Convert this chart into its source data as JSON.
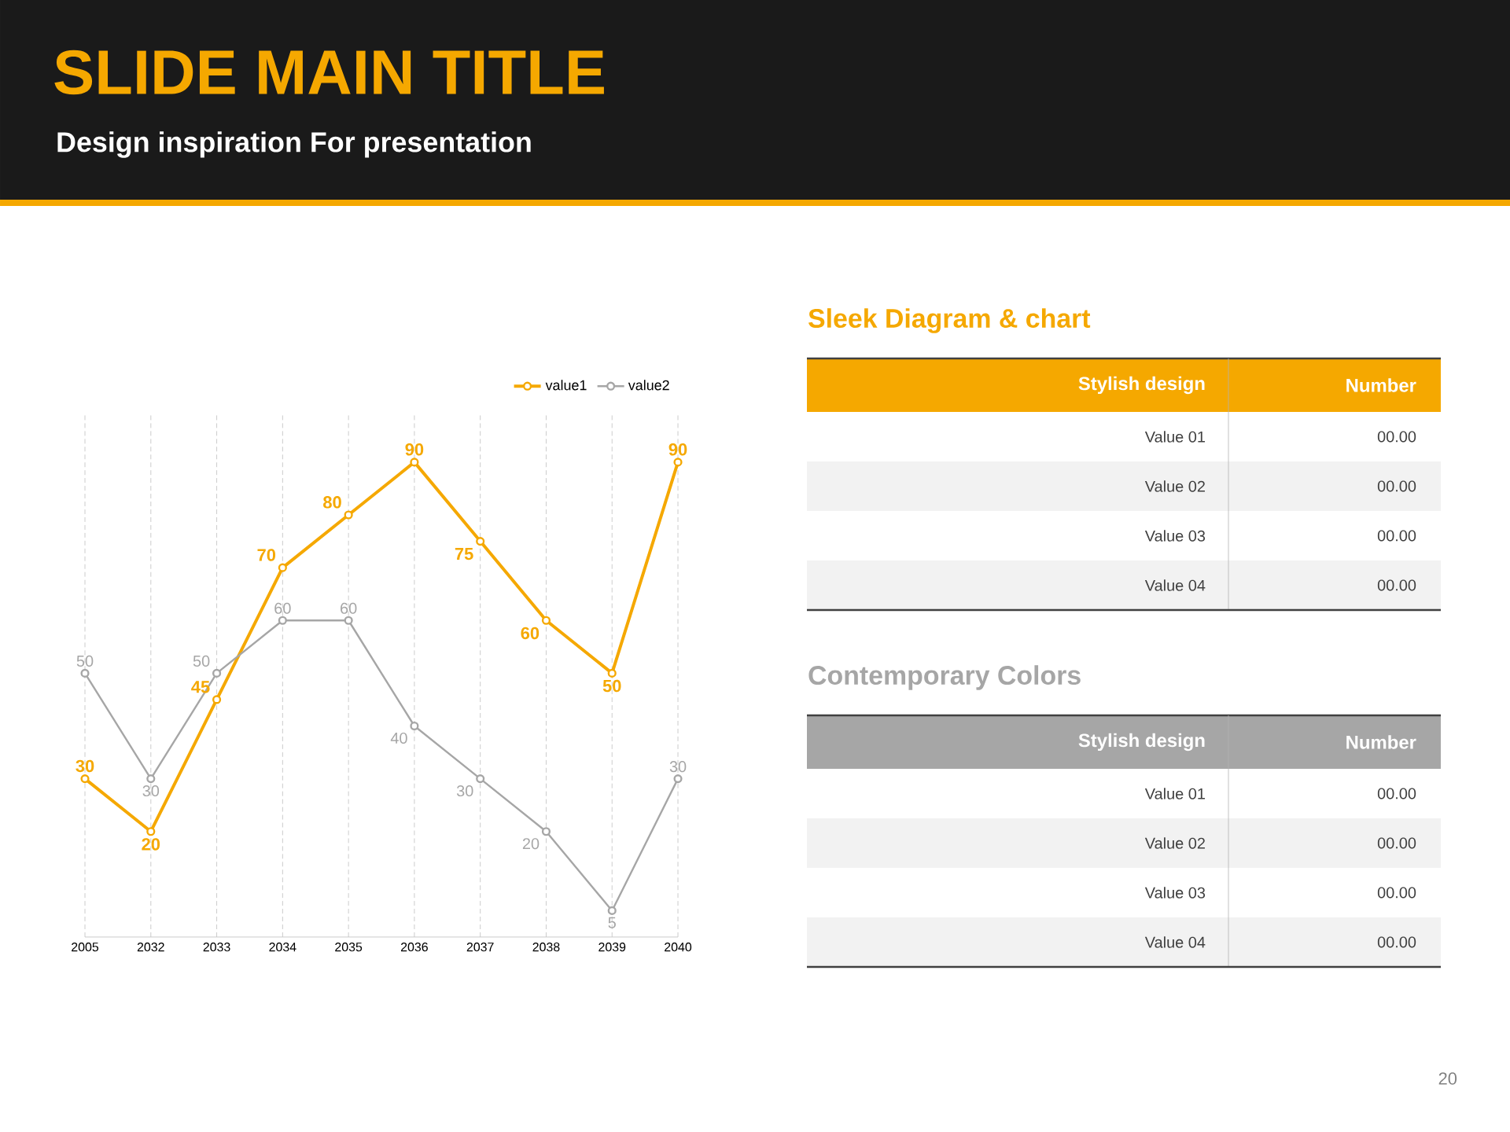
{
  "chart_data": [
    {
      "type": "line",
      "title": "SLIDE MAIN TITLE",
      "subtitle": "Design inspiration For presentation",
      "categories": [
        "2005",
        "2032",
        "2033",
        "2034",
        "2035",
        "2036",
        "2037",
        "2038",
        "2039",
        "2040"
      ],
      "series": [
        {
          "name": "value1",
          "color": "#f5a800",
          "values": [
            30,
            20,
            45,
            70,
            80,
            90,
            75,
            60,
            50,
            90
          ]
        },
        {
          "name": "value2",
          "color": "#a6a6a6",
          "values": [
            50,
            30,
            50,
            60,
            60,
            40,
            30,
            20,
            5,
            30
          ]
        }
      ],
      "data_labels": true,
      "grid": "x",
      "legend": "top right",
      "marker": "circle",
      "line_style": "solid",
      "annotations": [
        "20"
      ]
    },
    {
      "type": "other",
      "title": "Sleek Diagram & chart",
      "color": "#f5a800",
      "annotations": [
        "Stylish design",
        "Number",
        "Value 01",
        "00.00",
        "Value 02",
        "00.00",
        "Value 03",
        "00.00",
        "Value 04",
        "00.00"
      ]
    },
    {
      "type": "other",
      "title": "Contemporary Colors",
      "color": "#a6a6a6",
      "annotations": [
        "Stylish design",
        "Number",
        "Value 01",
        "00.00",
        "Value 02",
        "00.00",
        "Value 03",
        "00.00",
        "Value 04",
        "00.00"
      ]
    }
  ]
}
